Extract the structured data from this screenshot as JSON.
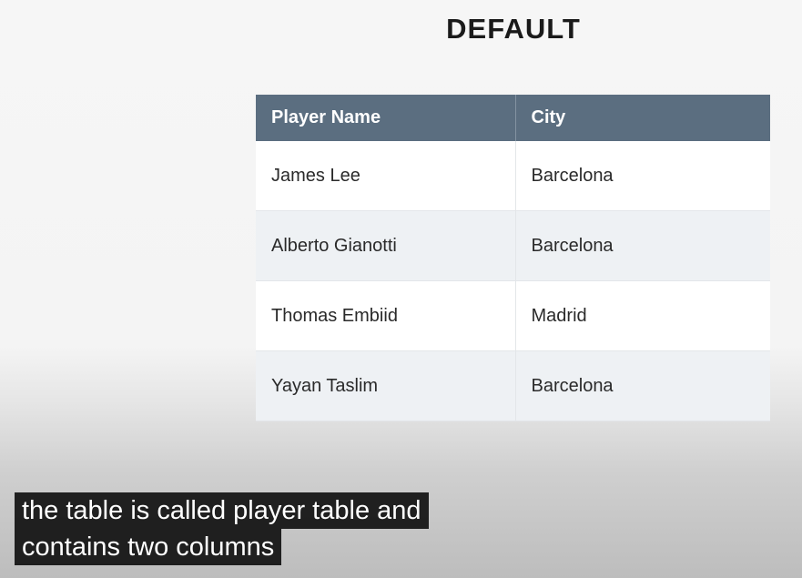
{
  "title": "DEFAULT",
  "table": {
    "columns": [
      "Player Name",
      "City"
    ],
    "rows": [
      [
        "James Lee",
        "Barcelona"
      ],
      [
        "Alberto Gianotti",
        "Barcelona"
      ],
      [
        "Thomas Embiid",
        "Madrid"
      ],
      [
        "Yayan Taslim",
        "Barcelona"
      ]
    ]
  },
  "caption": {
    "lines": [
      "the table is called player table and",
      "contains two columns"
    ]
  },
  "colors": {
    "header_bg": "#5b6e80",
    "header_text": "#ffffff",
    "row_alt_bg": "#eef1f4",
    "caption_bg": "#080808"
  }
}
